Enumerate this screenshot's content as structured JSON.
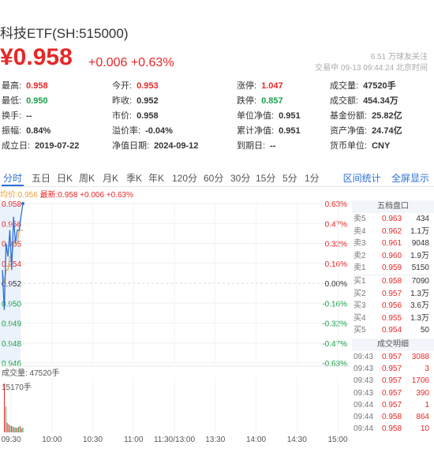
{
  "header": {
    "title": "科技ETF(SH:515000)",
    "price": "¥0.958",
    "change": "+0.006 +0.63%",
    "followers": "6.51 万球友关注",
    "status": "交易中 09-13 09:44:24 北京时间"
  },
  "stats": [
    [
      {
        "k": "最高:",
        "v": "0.958",
        "c": "red"
      },
      {
        "k": "今开:",
        "v": "0.953",
        "c": "red"
      },
      {
        "k": "涨停:",
        "v": "1.047",
        "c": "red"
      },
      {
        "k": "成交量:",
        "v": "47520手",
        "c": ""
      }
    ],
    [
      {
        "k": "最低:",
        "v": "0.950",
        "c": "green"
      },
      {
        "k": "昨收:",
        "v": "0.952",
        "c": ""
      },
      {
        "k": "跌停:",
        "v": "0.857",
        "c": "green"
      },
      {
        "k": "成交额:",
        "v": "454.34万",
        "c": ""
      }
    ],
    [
      {
        "k": "换手:",
        "v": "--",
        "c": ""
      },
      {
        "k": "市价:",
        "v": "0.958",
        "c": ""
      },
      {
        "k": "单位净值:",
        "v": "0.951",
        "c": ""
      },
      {
        "k": "基金份额:",
        "v": "25.82亿",
        "c": ""
      }
    ],
    [
      {
        "k": "振幅:",
        "v": "0.84%",
        "c": ""
      },
      {
        "k": "溢价率:",
        "v": "-0.04%",
        "c": ""
      },
      {
        "k": "累计净值:",
        "v": "0.951",
        "c": ""
      },
      {
        "k": "资产净值:",
        "v": "24.74亿",
        "c": ""
      }
    ],
    [
      {
        "k": "成立日:",
        "v": "2019-07-22",
        "c": ""
      },
      {
        "k": "净值日期:",
        "v": "2024-09-12",
        "c": ""
      },
      {
        "k": "到期日:",
        "v": "--",
        "c": ""
      },
      {
        "k": "货币单位:",
        "v": "CNY",
        "c": ""
      }
    ]
  ],
  "tabs": [
    "分时",
    "五日",
    "日K",
    "周K",
    "月K",
    "季K",
    "年K",
    "120分",
    "60分",
    "30分",
    "15分",
    "5分",
    "1分"
  ],
  "tabs_right": [
    "区间统计",
    "全屏显示"
  ],
  "legend": {
    "avg": "均价:0.956",
    "last": "最新:0.958 +0.006 +0.63%"
  },
  "chart_data": {
    "type": "line",
    "y_left_ticks": [
      "0.958",
      "0.956",
      "0.955",
      "0.954",
      "0.952",
      "0.950",
      "0.949",
      "0.948",
      "0.946"
    ],
    "y_right_ticks": [
      "0.63%",
      "0.47%",
      "0.32%",
      "0.16%",
      "0.00%",
      "-0.16%",
      "-0.32%",
      "-0.47%",
      "-0.63%"
    ],
    "x_ticks": [
      "09:30",
      "10:00",
      "10:30",
      "11:00",
      "11:30/13:00",
      "13:30",
      "14:00",
      "14:30",
      "15:00"
    ],
    "ylim": [
      0.946,
      0.958
    ],
    "prev_close": 0.952,
    "price_series": [
      0.953,
      0.95,
      0.955,
      0.954,
      0.956,
      0.953,
      0.957,
      0.955,
      0.956,
      0.956,
      0.957,
      0.958
    ],
    "avg_series": [
      0.953,
      0.952,
      0.953,
      0.953,
      0.954,
      0.954,
      0.955,
      0.955,
      0.955,
      0.956,
      0.956,
      0.956
    ],
    "volume_label": "成交量: 47520手",
    "volume_max_label": "15170手",
    "volume_values": [
      15170,
      8000,
      3000,
      2500,
      2200,
      2000,
      1800,
      1600,
      1500,
      1400,
      1700,
      2000,
      1300,
      1500
    ]
  },
  "orderbook": {
    "title": "五档盘口",
    "asks": [
      {
        "label": "卖5",
        "price": "0.963",
        "vol": "434"
      },
      {
        "label": "卖4",
        "price": "0.962",
        "vol": "1.1万"
      },
      {
        "label": "卖3",
        "price": "0.961",
        "vol": "9048"
      },
      {
        "label": "卖2",
        "price": "0.960",
        "vol": "1.9万"
      },
      {
        "label": "卖1",
        "price": "0.959",
        "vol": "5150"
      }
    ],
    "bids": [
      {
        "label": "买1",
        "price": "0.958",
        "vol": "7090"
      },
      {
        "label": "买2",
        "price": "0.957",
        "vol": "1.3万"
      },
      {
        "label": "买3",
        "price": "0.956",
        "vol": "3.6万"
      },
      {
        "label": "买4",
        "price": "0.955",
        "vol": "1.3万"
      },
      {
        "label": "买5",
        "price": "0.954",
        "vol": "50"
      }
    ],
    "trades_title": "成交明细",
    "trades": [
      {
        "t": "09:43",
        "p": "0.957",
        "v": "3088"
      },
      {
        "t": "09:43",
        "p": "0.957",
        "v": "3"
      },
      {
        "t": "09:43",
        "p": "0.957",
        "v": "1706"
      },
      {
        "t": "09:43",
        "p": "0.957",
        "v": "390"
      },
      {
        "t": "09:44",
        "p": "0.957",
        "v": "1"
      },
      {
        "t": "09:44",
        "p": "0.958",
        "v": "864"
      },
      {
        "t": "09:44",
        "p": "0.958",
        "v": "10"
      }
    ]
  }
}
